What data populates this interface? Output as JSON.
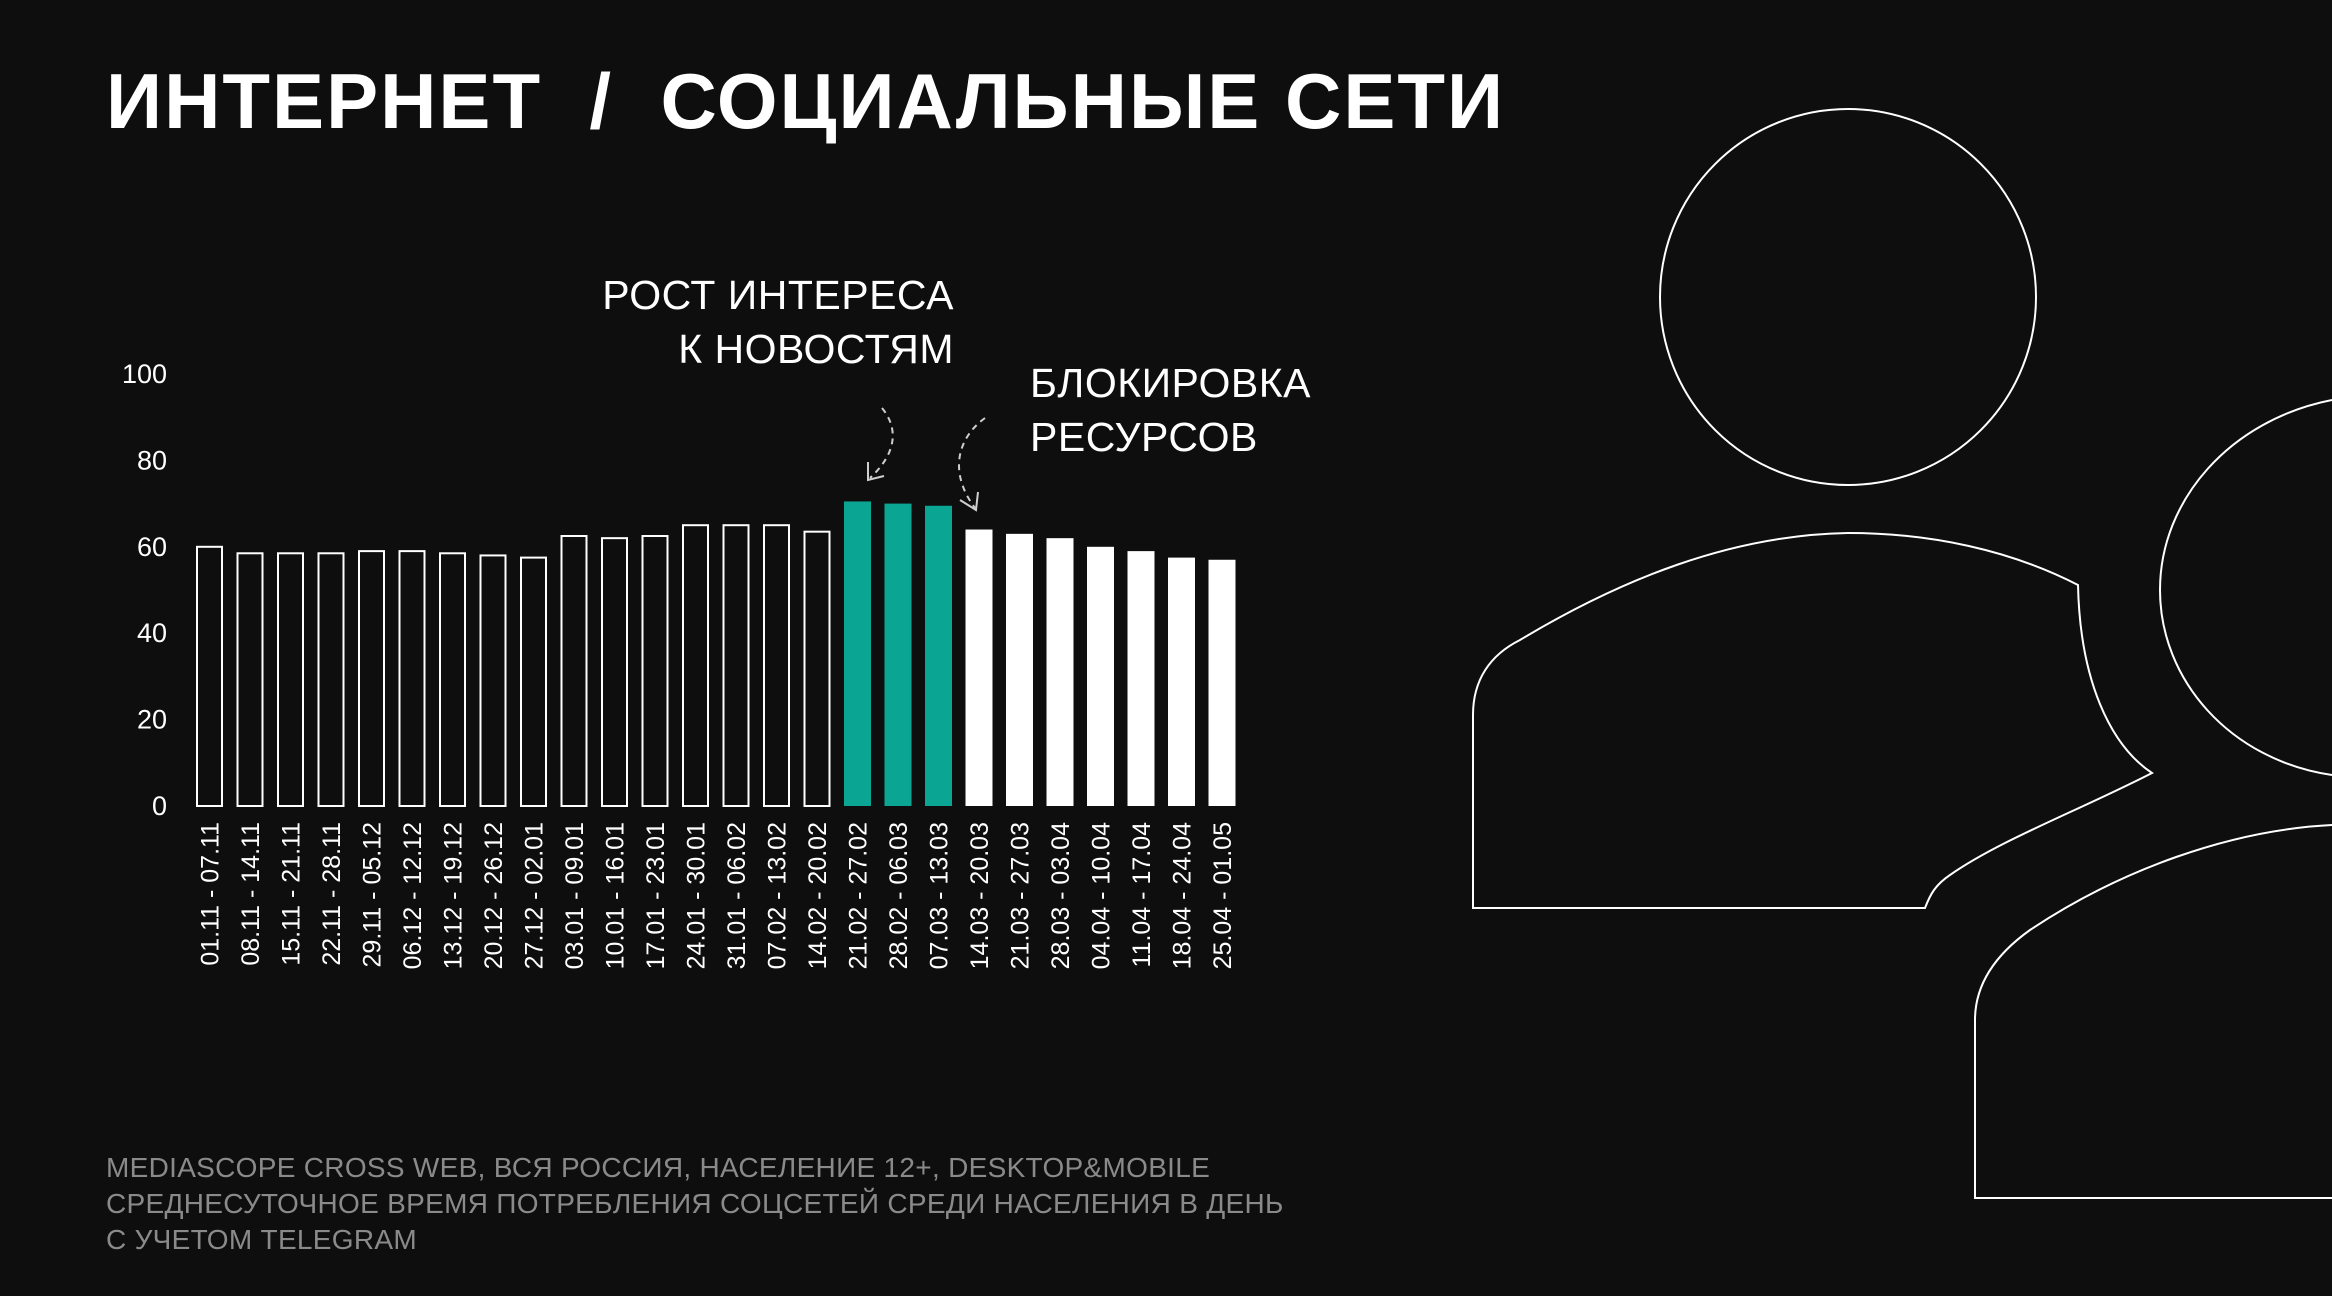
{
  "slide": {
    "title": "ИНТЕРНЕТ  /  СОЦИАЛЬНЫЕ СЕТИ"
  },
  "annotations": {
    "growth": [
      "РОСТ ИНТЕРЕСА",
      "К НОВОСТЯМ"
    ],
    "blocking": [
      "БЛОКИРОВКА",
      "РЕСУРСОВ"
    ]
  },
  "source": {
    "lines": [
      "MEDIASCOPE CROSS WEB, ВСЯ РОССИЯ, НАСЕЛЕНИЕ 12+, DESKTOP&MOBILE",
      "СРЕДНЕСУТОЧНОЕ ВРЕМЯ ПОТРЕБЛЕНИЯ СОЦСЕТЕЙ СРЕДИ НАСЕЛЕНИЯ В ДЕНЬ",
      "С УЧЕТОМ TELEGRAM"
    ]
  },
  "colors": {
    "background": "#0e0e0e",
    "outline_bar": "#ffffff",
    "highlight_bar": "#0aa593",
    "solid_bar": "#ffffff",
    "source_text": "#8a8a8a"
  },
  "illustration": {
    "icon": "people-outline-icon"
  },
  "chart_data": {
    "type": "bar",
    "title": "",
    "xlabel": "",
    "ylabel": "",
    "ylim": [
      0,
      100
    ],
    "yticks": [
      0,
      20,
      40,
      60,
      80,
      100
    ],
    "grid": false,
    "categories": [
      "01.11 - 07.11",
      "08.11 - 14.11",
      "15.11 - 21.11",
      "22.11 - 28.11",
      "29.11 - 05.12",
      "06.12 - 12.12",
      "13.12 - 19.12",
      "20.12 - 26.12",
      "27.12 - 02.01",
      "03.01 - 09.01",
      "10.01 - 16.01",
      "17.01 - 23.01",
      "24.01 - 30.01",
      "31.01 - 06.02",
      "07.02 - 13.02",
      "14.02 - 20.02",
      "21.02 - 27.02",
      "28.02 - 06.03",
      "07.03 - 13.03",
      "14.03 - 20.03",
      "21.03 - 27.03",
      "28.03 - 03.04",
      "04.04 - 10.04",
      "11.04 - 17.04",
      "18.04 - 24.04",
      "25.04 - 01.05"
    ],
    "values": [
      60,
      58.5,
      58.5,
      58.5,
      59,
      59,
      58.5,
      58,
      57.5,
      62.5,
      62,
      62.5,
      65,
      65,
      65,
      63.5,
      70.5,
      70,
      69.5,
      64,
      63,
      62,
      60,
      59,
      57.5,
      57
    ],
    "bar_style": [
      "outline",
      "outline",
      "outline",
      "outline",
      "outline",
      "outline",
      "outline",
      "outline",
      "outline",
      "outline",
      "outline",
      "outline",
      "outline",
      "outline",
      "outline",
      "outline",
      "highlight",
      "highlight",
      "highlight",
      "solid",
      "solid",
      "solid",
      "solid",
      "solid",
      "solid",
      "solid"
    ]
  }
}
